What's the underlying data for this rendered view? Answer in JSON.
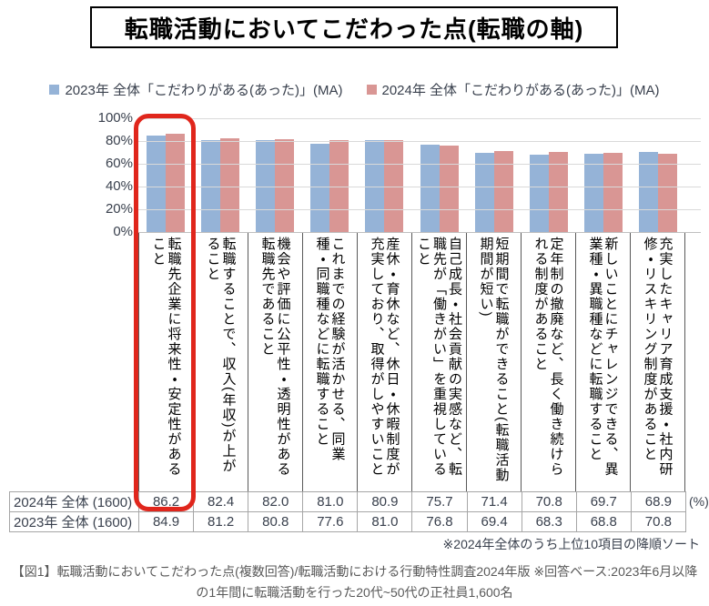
{
  "title": "転職活動においてこだわった点(転職の軸)",
  "legend": [
    {
      "label": "2023年 全体「こだわりがある(あった)」(MA)",
      "color": "#95b3d7"
    },
    {
      "label": "2024年 全体「こだわりがある(あった)」(MA)",
      "color": "#d99694"
    }
  ],
  "chart_data": {
    "type": "bar",
    "title": "転職活動においてこだわった点(転職の軸)",
    "categories": [
      "転職先企業に将来性・安定性があること",
      "転職することで、収入(年収)が上がること",
      "機会や評価に公平性・透明性がある転職先であること",
      "これまでの経験が活かせる、同業種・同職種などに転職すること",
      "産休・育休など、休日・休暇制度が充実しており、取得がしやすいこと",
      "自己成長・社会貢献の実感など、転職先が「働きがい」を重視していること",
      "短期間で転職ができること(転職活動期間が短い)",
      "定年制の撤廃など、長く働き続けられる制度があること",
      "新しいことにチャレンジできる、異業種・異職種などに転職すること",
      "充実したキャリア育成支援・社内研修・リスキリング制度があること"
    ],
    "series": [
      {
        "name": "2023年 全体「こだわりがある(あった)」(MA)",
        "color": "#95b3d7",
        "values": [
          84.9,
          81.2,
          80.8,
          77.6,
          81.0,
          76.8,
          69.4,
          68.3,
          68.8,
          70.8
        ]
      },
      {
        "name": "2024年 全体「こだわりがある(あった)」(MA)",
        "color": "#d99694",
        "values": [
          86.2,
          82.4,
          82.0,
          81.0,
          80.9,
          75.7,
          71.4,
          70.8,
          69.7,
          68.9
        ]
      }
    ],
    "ylim": [
      0,
      100
    ],
    "yticks": [
      "100%",
      "80%",
      "60%",
      "40%",
      "20%",
      "0%"
    ],
    "grid": true,
    "legend_position": "top",
    "highlight": "1位「転職先企業に将来性・安定性があること」を赤枠で強調"
  },
  "table": {
    "rows": [
      {
        "label": "2024年 全体 (1600)",
        "values": [
          "86.2",
          "82.4",
          "82.0",
          "81.0",
          "80.9",
          "75.7",
          "71.4",
          "70.8",
          "69.7",
          "68.9"
        ]
      },
      {
        "label": "2023年 全体 (1600)",
        "values": [
          "84.9",
          "81.2",
          "80.8",
          "77.6",
          "81.0",
          "76.8",
          "69.4",
          "68.3",
          "68.8",
          "70.8"
        ]
      }
    ],
    "unit": "(%)"
  },
  "note": "※2024年全体のうち上位10項目の降順ソート",
  "caption": "【図1】転職活動においてこだわった点(複数回答)/転職活動における行動特性調査2024年版 ※回答ベース:2023年6月以降の1年間に転職活動を行った20代~50代の正社員1,600名",
  "colors": {
    "bar_2023": "#95b3d7",
    "bar_2024": "#d99694",
    "highlight_red": "#e0261c",
    "gridline": "#d9d9d9",
    "table_border": "#a6a6a6",
    "text_dark": "#39404d",
    "caption_gray": "#595959"
  }
}
